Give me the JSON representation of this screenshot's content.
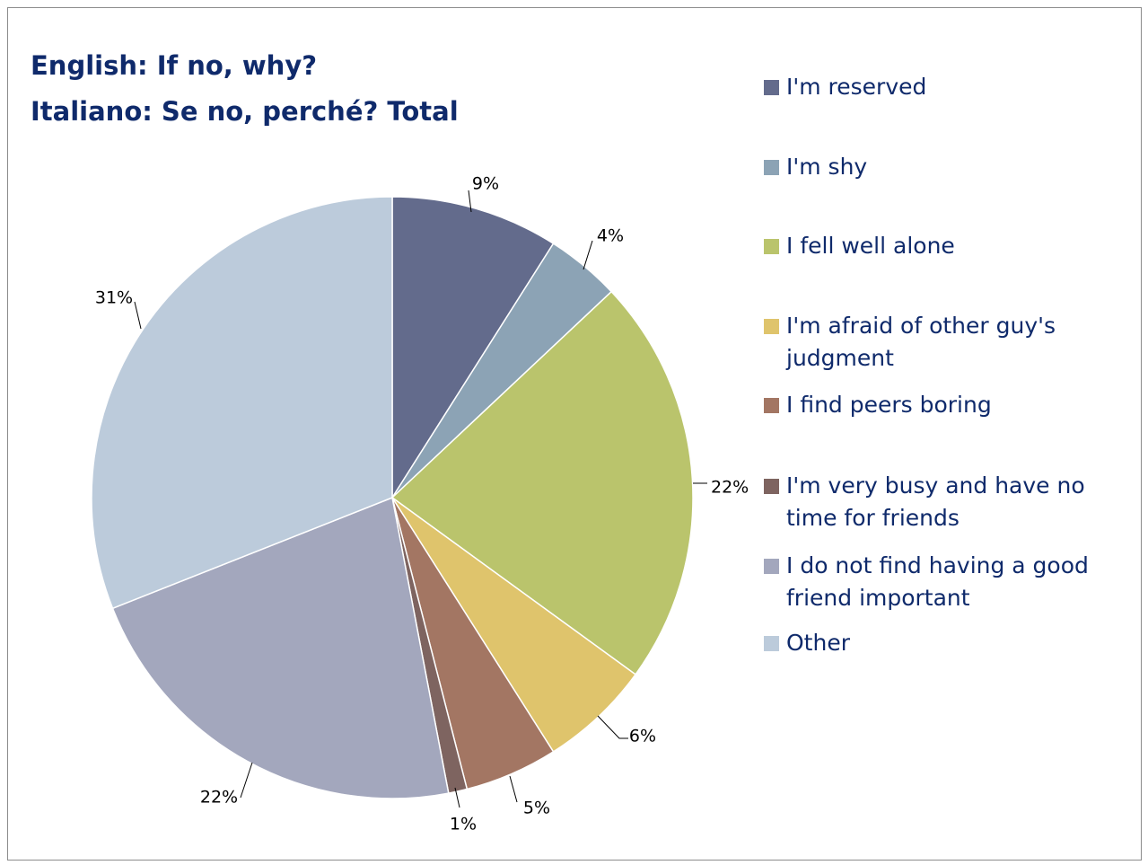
{
  "chart_data": {
    "type": "pie",
    "title": "English: If no, why?",
    "subtitle": "Italiano: Se no, perché?  Total",
    "legend_position": "right",
    "slices": [
      {
        "label": "I'm reserved",
        "value": 9,
        "display": "9%",
        "color": "#636b8c"
      },
      {
        "label": "I'm shy",
        "value": 4,
        "display": "4%",
        "color": "#8ca3b5"
      },
      {
        "label": "I fell well alone",
        "value": 22,
        "display": "22%",
        "color": "#bac46c"
      },
      {
        "label": "I'm afraid of other guy's\njudgment",
        "value": 6,
        "display": "6%",
        "color": "#dfc46c"
      },
      {
        "label": "I find peers boring",
        "value": 5,
        "display": "5%",
        "color": "#a37663"
      },
      {
        "label": "I'm very busy and have no\ntime for friends",
        "value": 1,
        "display": "1%",
        "color": "#7e6460"
      },
      {
        "label": "I do not find having a good\nfriend important",
        "value": 22,
        "display": "22%",
        "color": "#a3a7bd"
      },
      {
        "label": "Other",
        "value": 31,
        "display": "31%",
        "color": "#bccbdb"
      }
    ]
  }
}
